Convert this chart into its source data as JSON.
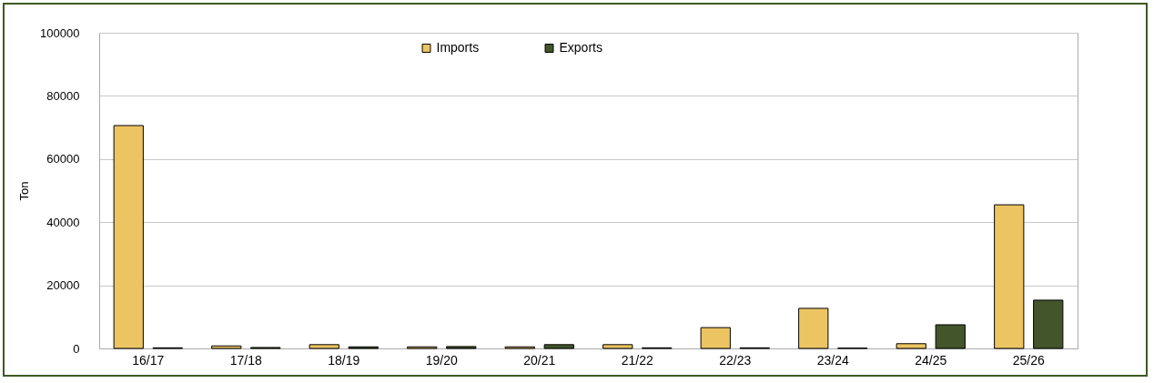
{
  "chart_data": {
    "type": "bar",
    "ylabel": "Ton",
    "categories": [
      "16/17",
      "17/18",
      "18/19",
      "19/20",
      "20/21",
      "21/22",
      "22/23",
      "23/24",
      "24/25",
      "25/26"
    ],
    "series": [
      {
        "name": "Imports",
        "color": "#ecc462",
        "values": [
          70600,
          800,
          1200,
          500,
          500,
          1200,
          6600,
          12700,
          1500,
          45500
        ]
      },
      {
        "name": "Exports",
        "color": "#43552a",
        "values": [
          200,
          300,
          500,
          600,
          1200,
          200,
          200,
          100,
          7500,
          15300
        ]
      }
    ],
    "ylim": [
      0,
      100000
    ],
    "yticks": [
      0,
      20000,
      40000,
      60000,
      80000,
      100000
    ],
    "grid": "y",
    "legend": "top"
  }
}
